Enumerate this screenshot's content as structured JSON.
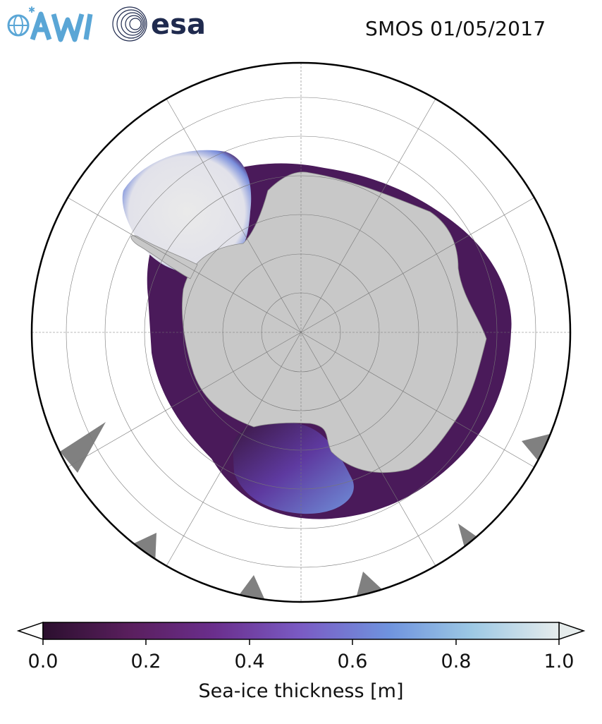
{
  "title": "SMOS 01/05/2017",
  "logos": {
    "awi": {
      "text": "AWI",
      "icon": "awi-globe-icon"
    },
    "esa": {
      "text": "esa",
      "icon": "esa-swirl-icon"
    }
  },
  "colors": {
    "land": "#c8c8c8",
    "no_data": "#808080",
    "ocean": "#ffffff",
    "ice_thin": "#2b0f2e",
    "ice_mid": "#6f3fa6",
    "ice_thick": "#7aa7e0",
    "ice_max": "#e6ecec"
  },
  "colorbar": {
    "label": "Sea-ice thickness [m]",
    "ticks": [
      "0.0",
      "0.2",
      "0.4",
      "0.6",
      "0.8",
      "1.0"
    ],
    "range": [
      0.0,
      1.0
    ],
    "extend": "both",
    "colormap": [
      "#2b0f2e",
      "#5a1f5e",
      "#6a2e8c",
      "#7a5bc4",
      "#6f93de",
      "#9cc8e4",
      "#e6ecec"
    ]
  }
}
